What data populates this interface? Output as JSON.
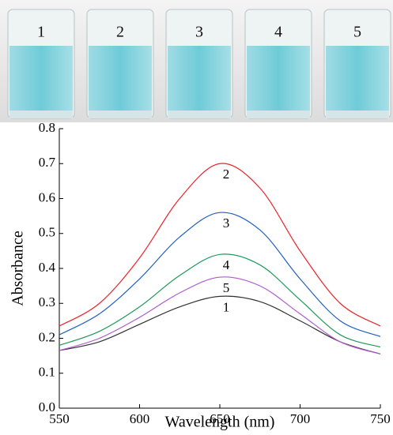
{
  "photo": {
    "labels": [
      "1",
      "2",
      "3",
      "4",
      "5"
    ]
  },
  "chart_data": {
    "type": "line",
    "x_label": "Wavelength (nm)",
    "y_label": "Absorbance",
    "x": [
      550,
      575,
      600,
      625,
      650,
      675,
      700,
      725,
      750
    ],
    "series": [
      {
        "name": "1",
        "color": "#333333",
        "values": [
          0.165,
          0.19,
          0.24,
          0.29,
          0.32,
          0.305,
          0.25,
          0.19,
          0.155
        ]
      },
      {
        "name": "2",
        "color": "#e8262a",
        "values": [
          0.235,
          0.3,
          0.43,
          0.6,
          0.7,
          0.63,
          0.45,
          0.3,
          0.235
        ]
      },
      {
        "name": "3",
        "color": "#1f5fc4",
        "values": [
          0.21,
          0.27,
          0.37,
          0.49,
          0.56,
          0.51,
          0.37,
          0.25,
          0.205
        ]
      },
      {
        "name": "4",
        "color": "#1e9a5a",
        "values": [
          0.18,
          0.22,
          0.29,
          0.38,
          0.44,
          0.41,
          0.31,
          0.21,
          0.175
        ]
      },
      {
        "name": "5",
        "color": "#b05ad0",
        "values": [
          0.165,
          0.2,
          0.26,
          0.33,
          0.375,
          0.35,
          0.27,
          0.19,
          0.155
        ]
      }
    ],
    "xlim": [
      550,
      750
    ],
    "xticks": [
      550,
      600,
      650,
      700,
      750
    ],
    "ylim": [
      0,
      0.8
    ],
    "yticks": [
      {
        "value": 0,
        "label": "0.0"
      },
      0.1,
      0.2,
      0.3,
      0.4,
      0.5,
      0.6,
      0.7,
      0.8
    ]
  }
}
